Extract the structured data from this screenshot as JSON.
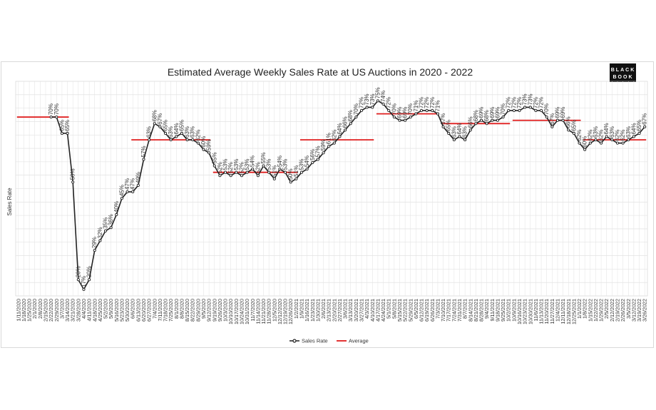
{
  "chart_data": {
    "type": "line",
    "title": "Estimated Average Weekly Sales Rate at US Auctions in 2020 - 2022",
    "ylabel": "Sales Rate",
    "xlabel": "",
    "ylim": [
      15,
      81
    ],
    "grid": true,
    "legend_position": "bottom",
    "logo": [
      "BLACK",
      "BOOK"
    ],
    "x": [
      "1/11/2020",
      "1/18/2020",
      "1/25/2020",
      "2/1/2020",
      "2/8/2020",
      "2/15/2020",
      "2/22/2020",
      "2/29/2020",
      "3/7/2020",
      "3/14/2020",
      "3/21/2020",
      "3/28/2020",
      "4/4/2020",
      "4/11/2020",
      "4/18/2020",
      "4/25/2020",
      "5/2/2020",
      "5/9/2020",
      "5/16/2020",
      "5/23/2020",
      "5/30/2020",
      "6/6/2020",
      "6/13/2020",
      "6/20/2020",
      "6/27/2020",
      "7/4/2020",
      "7/11/2020",
      "7/18/2020",
      "7/25/2020",
      "8/1/2020",
      "8/8/2020",
      "8/15/2020",
      "8/22/2020",
      "8/29/2020",
      "9/5/2020",
      "9/12/2020",
      "9/19/2020",
      "9/26/2020",
      "10/3/2020",
      "10/10/2020",
      "10/17/2020",
      "10/24/2020",
      "10/31/2020",
      "11/7/2020",
      "11/14/2020",
      "11/21/2020",
      "11/28/2020",
      "12/5/2020",
      "12/12/2020",
      "12/19/2020",
      "12/26/2020",
      "1/2/2021",
      "1/9/2021",
      "1/16/2021",
      "1/23/2021",
      "1/30/2021",
      "2/6/2021",
      "2/13/2021",
      "2/20/2021",
      "2/27/2021",
      "3/6/2021",
      "3/13/2021",
      "3/20/2021",
      "3/27/2021",
      "4/3/2021",
      "4/10/2021",
      "4/17/2021",
      "4/24/2021",
      "5/1/2021",
      "5/8/2021",
      "5/15/2021",
      "5/22/2021",
      "5/29/2021",
      "6/5/2021",
      "6/12/2021",
      "6/19/2021",
      "6/26/2021",
      "7/3/2021",
      "7/10/2021",
      "7/17/2021",
      "7/24/2021",
      "7/31/2021",
      "8/7/2021",
      "8/14/2021",
      "8/21/2021",
      "8/28/2021",
      "9/4/2021",
      "9/11/2021",
      "9/18/2021",
      "9/25/2021",
      "10/2/2021",
      "10/9/2021",
      "10/16/2021",
      "10/23/2021",
      "10/30/2021",
      "11/6/2021",
      "11/13/2021",
      "11/20/2021",
      "11/27/2021",
      "12/4/2021",
      "12/11/2021",
      "12/18/2021",
      "12/25/2021",
      "1/1/2022",
      "1/8/2022",
      "1/15/2022",
      "1/22/2022",
      "1/29/2022",
      "2/5/2022",
      "2/12/2022",
      "2/19/2022",
      "2/26/2022",
      "3/5/2022",
      "3/12/2022",
      "3/19/2022",
      "3/26/2022"
    ],
    "x_tick_labels": [
      "1/11/2020",
      "1/18/2020",
      "1/25/2020",
      "2/1/2020",
      "2/8/2020",
      "2/15/2020",
      "2/22/2020",
      "2/29/2020",
      "3/7/2020",
      "3/14/2020",
      "3/21/2020",
      "3/28/2020",
      "4/4/2020",
      "4/11/2020",
      "4/18/2020",
      "4/25/2020",
      "5/2/2020",
      "5/9/2020",
      "5/16/2020",
      "5/23/2020",
      "5/30/2020",
      "6/6/2020",
      "6/13/2020",
      "6/20/2020",
      "6/27/2020",
      "7/4/2020",
      "7/11/2020",
      "7/18/2020",
      "7/25/2020",
      "8/1/2020",
      "8/8/2020",
      "8/15/2020",
      "8/22/2020",
      "8/29/2020",
      "9/5/2020",
      "9/12/2020",
      "9/19/2020",
      "9/26/2020",
      "10/3/2020",
      "10/10/2020",
      "10/17/2020",
      "10/24/2020",
      "10/31/2020",
      "11/7/2020",
      "11/14/2020",
      "11/21/2020",
      "11/28/2020",
      "12/5/2020",
      "12/12/2020",
      "12/19/2020",
      "12/26/2020",
      "1/2/2021",
      "1/9/2021",
      "1/16/2021",
      "1/23/2021",
      "1/30/2021",
      "2/6/2021",
      "2/13/2021",
      "2/20/2021",
      "2/27/2021",
      "3/6/2021",
      "3/13/2021",
      "3/20/2021",
      "3/27/2021",
      "4/3/2021",
      "4/10/2021",
      "4/17/2021",
      "4/24/2021",
      "5/1/2021",
      "5/8/2021",
      "5/15/2021",
      "5/22/2021",
      "5/29/2021",
      "6/5/2021",
      "6/12/2021",
      "6/19/2021",
      "6/26/2021",
      "7/3/2021",
      "7/10/2021",
      "7/17/2021",
      "7/24/2021",
      "7/31/2021",
      "8/7/2021",
      "8/14/2021",
      "8/21/2021",
      "8/28/2021",
      "9/4/2021",
      "9/11/2021",
      "9/18/2021",
      "9/25/2021",
      "10/2/2021",
      "10/9/2021",
      "10/16/2021",
      "10/23/2021",
      "10/30/2021",
      "11/6/2021",
      "11/13/2021",
      "11/20/2021",
      "11/27/2021",
      "12/4/2021",
      "12/11/2021",
      "12/18/2021",
      "12/25/2021",
      "1/1/2022",
      "1/8/2022",
      "1/15/2022",
      "1/22/2022",
      "1/29/2022",
      "2/5/2022",
      "2/12/2022",
      "2/19/2022",
      "2/26/2022",
      "3/5/2022",
      "3/12/2022",
      "3/19/2022",
      "3/26/2022"
    ],
    "series": [
      {
        "name": "Sales Rate",
        "color": "#222222",
        "values": [
          null,
          null,
          null,
          null,
          null,
          null,
          70,
          70,
          65,
          65,
          50,
          20,
          17,
          20,
          29,
          32,
          35,
          36,
          40,
          45,
          47,
          47,
          49,
          57,
          63,
          68,
          67,
          65,
          63,
          64,
          65,
          63,
          63,
          62,
          60,
          59,
          55,
          52,
          53,
          52,
          53,
          52,
          53,
          54,
          52,
          55,
          53,
          51,
          54,
          53,
          50,
          51,
          53,
          54,
          56,
          57,
          59,
          61,
          62,
          64,
          66,
          68,
          70,
          72,
          73,
          73,
          75,
          74,
          72,
          70,
          69,
          69,
          70,
          71,
          72,
          72,
          72,
          71,
          67,
          65,
          63,
          64,
          63,
          66,
          68,
          69,
          68,
          69,
          69,
          70,
          72,
          72,
          72,
          73,
          73,
          72,
          72,
          70,
          67,
          69,
          69,
          66,
          65,
          62,
          60,
          62,
          63,
          62,
          64,
          63,
          62,
          62,
          63,
          64,
          65,
          67
        ]
      },
      {
        "name": "Average",
        "color": "#e01e1e",
        "segments": [
          {
            "from": "1/11/2020",
            "to": "3/14/2020",
            "value": 70
          },
          {
            "from": "6/6/2020",
            "to": "9/12/2020",
            "value": 63
          },
          {
            "from": "9/19/2020",
            "to": "1/2/2021",
            "value": 53
          },
          {
            "from": "1/9/2021",
            "to": "4/10/2021",
            "value": 63
          },
          {
            "from": "4/17/2021",
            "to": "7/3/2021",
            "value": 71
          },
          {
            "from": "7/10/2021",
            "to": "10/2/2021",
            "value": 68
          },
          {
            "from": "10/9/2021",
            "to": "1/1/2022",
            "value": 69
          },
          {
            "from": "1/8/2022",
            "to": "3/26/2022",
            "value": 63
          }
        ]
      }
    ],
    "data_labels": [
      "70%",
      "70%",
      "65%",
      "65%",
      "50%",
      "20%",
      "17%",
      "20%",
      "29%",
      "32%",
      "35%",
      "36%",
      "40%",
      "45%",
      "47%",
      "47%",
      "49%",
      "57%",
      "63%",
      "68%",
      "67%",
      "65%",
      "63%",
      "64%",
      "65%",
      "63%",
      "63%",
      "62%",
      "60%",
      "59%",
      "55%",
      "52%",
      "53%",
      "52%",
      "53%",
      "52%",
      "53%",
      "54%",
      "52%",
      "55%",
      "53%",
      "51%",
      "54%",
      "53%",
      "50%",
      "51%",
      "53%",
      "54%",
      "56%",
      "57%",
      "59%",
      "61%",
      "62%",
      "64%",
      "66%",
      "68%",
      "70%",
      "72%",
      "73%",
      "73%",
      "75%",
      "74%",
      "72%",
      "70%",
      "69%",
      "69%",
      "70%",
      "71%",
      "72%",
      "72%",
      "72%",
      "71%",
      "67%",
      "65%",
      "63%",
      "64%",
      "63%",
      "66%",
      "68%",
      "69%",
      "68%",
      "69%",
      "69%",
      "70%",
      "72%",
      "72%",
      "72%",
      "73%",
      "73%",
      "72%",
      "72%",
      "70%",
      "67%",
      "69%",
      "69%",
      "66%",
      "65%",
      "62%",
      "60%",
      "62%",
      "63%",
      "62%",
      "64%",
      "63%",
      "62%",
      "62%",
      "63%",
      "64%",
      "65%",
      "67%"
    ]
  }
}
